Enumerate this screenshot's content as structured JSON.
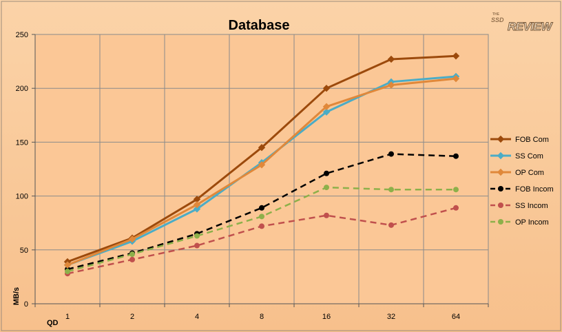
{
  "chart_data": {
    "type": "line",
    "title": "Database",
    "xlabel": "QD",
    "ylabel": "MB/s",
    "categories": [
      "1",
      "2",
      "4",
      "8",
      "16",
      "32",
      "64"
    ],
    "ylim": [
      0,
      250
    ],
    "yticks": [
      0,
      50,
      100,
      150,
      200,
      250
    ],
    "grid": true,
    "legend_position": "right",
    "watermark": "THE SSD REVIEW",
    "series": [
      {
        "name": "FOB Com",
        "color": "#9C4A0C",
        "dash": false,
        "marker": "diamond",
        "values": [
          39,
          61,
          97,
          145,
          200,
          227,
          230
        ]
      },
      {
        "name": "SS Com",
        "color": "#4BACC6",
        "dash": false,
        "marker": "diamond",
        "values": [
          36,
          58,
          88,
          131,
          178,
          206,
          211
        ]
      },
      {
        "name": "OP Com",
        "color": "#E0883A",
        "dash": false,
        "marker": "diamond",
        "values": [
          36,
          60,
          92,
          129,
          183,
          203,
          209
        ]
      },
      {
        "name": "FOB Incom",
        "color": "#000000",
        "dash": true,
        "marker": "circle",
        "values": [
          32,
          47,
          65,
          89,
          121,
          139,
          137
        ]
      },
      {
        "name": "SS Incom",
        "color": "#C0504D",
        "dash": true,
        "marker": "circle",
        "values": [
          28,
          41,
          54,
          72,
          82,
          73,
          89
        ]
      },
      {
        "name": "OP Incom",
        "color": "#8DB04A",
        "dash": true,
        "marker": "circle",
        "values": [
          30,
          46,
          63,
          81,
          108,
          106,
          106
        ]
      }
    ]
  }
}
